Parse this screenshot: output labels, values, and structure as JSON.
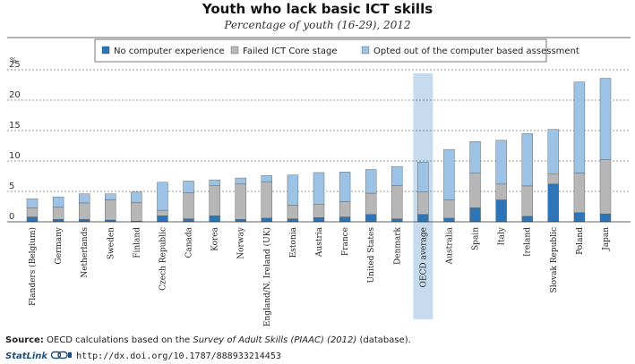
{
  "title": "Youth who lack basic ICT skills",
  "subtitle": "Percentage of youth (16-29), 2012",
  "source": {
    "label": "Source:",
    "text_before": "OECD calculations based on the ",
    "italic": "Survey of Adult Skills (PIAAC) (2012)",
    "text_after": " (database)."
  },
  "statlink": {
    "brand": "StatLink",
    "url": "http://dx.doi.org/10.1787/888933214453"
  },
  "colors": {
    "no_computer": "#2d75b6",
    "failed_core": "#b7b7b7",
    "opted_out": "#9cc2e5",
    "highlight": "#c6dcee",
    "gridline": "#333333"
  },
  "chart_data": {
    "type": "bar",
    "stacked": true,
    "ylabel": "%",
    "ylim": [
      0,
      25
    ],
    "yticks": [
      0,
      5,
      10,
      15,
      20,
      25
    ],
    "grid": true,
    "legend_position": "top",
    "highlight_category": "OECD average",
    "categories": [
      "Flanders (Belgium)",
      "Germany",
      "Netherlands",
      "Sweden",
      "Finland",
      "Czech Republic",
      "Canada",
      "Korea",
      "Norway",
      "England/N. Ireland (UK)",
      "Estonia",
      "Austria",
      "France",
      "United States",
      "Denmark",
      "OECD average",
      "Australia",
      "Spain",
      "Italy",
      "Ireland",
      "Slovak Republic",
      "Poland",
      "Japan"
    ],
    "series": [
      {
        "name": "No computer experience",
        "color": "#2d75b6",
        "values": [
          0.8,
          0.4,
          0.4,
          0.3,
          0.1,
          1.0,
          0.5,
          1.0,
          0.4,
          0.6,
          0.5,
          0.7,
          0.8,
          1.2,
          0.5,
          1.2,
          0.6,
          2.3,
          3.6,
          0.9,
          6.2,
          1.5,
          1.3
        ]
      },
      {
        "name": "Failed ICT Core stage",
        "color": "#b7b7b7",
        "values": [
          1.5,
          2.0,
          2.7,
          3.3,
          3.1,
          0.9,
          4.3,
          5.0,
          5.8,
          6.0,
          2.2,
          2.2,
          2.5,
          3.5,
          5.5,
          3.7,
          3.0,
          5.7,
          2.6,
          5.0,
          1.7,
          6.5,
          8.9
        ]
      },
      {
        "name": "Opted out of the computer based assessment",
        "color": "#9cc2e5",
        "values": [
          1.5,
          1.7,
          1.5,
          1.0,
          1.7,
          4.6,
          1.9,
          0.9,
          1.0,
          1.0,
          5.0,
          5.2,
          4.9,
          3.9,
          3.1,
          4.9,
          8.3,
          5.2,
          7.2,
          8.6,
          7.3,
          15.0,
          13.4
        ]
      }
    ]
  }
}
